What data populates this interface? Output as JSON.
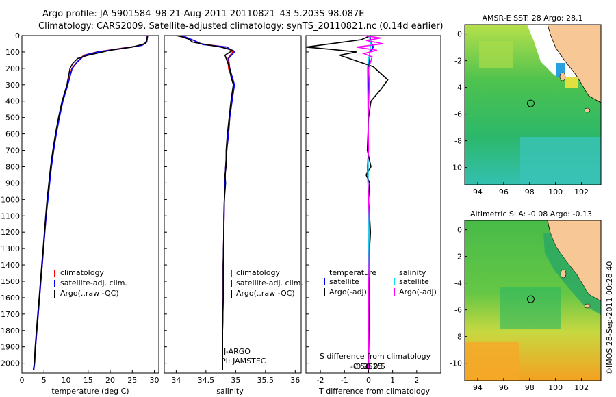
{
  "title_line1": "Argo profile: JA 5901584_98 21-Aug-2011 20110821_43 5.203S 98.087E",
  "title_line2": "Climatology: CARS2009. Satellite-adjusted climatology: synTS_20110821.nc (0.14d earlier)",
  "side_label": "©IMOS 28-Sep-2011 00:28:40",
  "colors": {
    "red": "#ff0000",
    "blue": "#0000ff",
    "black": "#000000",
    "cyan": "#00e5ee",
    "magenta": "#ff00ff",
    "land": "#f7c795"
  },
  "depth_ticks": [
    "0",
    "100",
    "200",
    "300",
    "400",
    "500",
    "600",
    "700",
    "800",
    "900",
    "1000",
    "1100",
    "1200",
    "1300",
    "1400",
    "1500",
    "1600",
    "1700",
    "1800",
    "1900",
    "2000"
  ],
  "chart_data": [
    {
      "type": "line",
      "title": "",
      "xlabel": "temperature (deg C)",
      "ylabel": "",
      "xlim": [
        0,
        31
      ],
      "ylim": [
        2060,
        0
      ],
      "xticks": [
        0,
        5,
        10,
        15,
        20,
        25,
        30
      ],
      "xtick_labels": [
        "0",
        "5",
        "10",
        "15",
        "20",
        "25",
        "30"
      ],
      "legend": [
        "climatology",
        "satellite-adj. clim.",
        "Argo(..raw -QC)"
      ],
      "series": [
        {
          "name": "climatology",
          "color": "#ff0000",
          "points": [
            [
              28.3,
              0
            ],
            [
              28.2,
              40
            ],
            [
              27.0,
              60
            ],
            [
              22,
              80
            ],
            [
              17,
              100
            ],
            [
              14,
              120
            ],
            [
              12.5,
              160
            ],
            [
              11.3,
              200
            ],
            [
              10.3,
              300
            ],
            [
              9.2,
              400
            ],
            [
              8.4,
              500
            ],
            [
              7.7,
              600
            ],
            [
              7.1,
              700
            ],
            [
              6.6,
              800
            ],
            [
              6.2,
              900
            ],
            [
              5.8,
              1000
            ],
            [
              5.5,
              1100
            ],
            [
              5.2,
              1200
            ],
            [
              4.9,
              1300
            ],
            [
              4.6,
              1400
            ],
            [
              4.3,
              1500
            ],
            [
              4.0,
              1600
            ],
            [
              3.7,
              1700
            ],
            [
              3.4,
              1800
            ],
            [
              3.1,
              1900
            ],
            [
              2.8,
              2000
            ],
            [
              2.6,
              2040
            ]
          ]
        },
        {
          "name": "satellite-adj. clim.",
          "color": "#0000ff",
          "points": [
            [
              28.4,
              0
            ],
            [
              28.3,
              40
            ],
            [
              27.2,
              60
            ],
            [
              22.3,
              80
            ],
            [
              17.2,
              100
            ],
            [
              14.2,
              120
            ],
            [
              12.6,
              160
            ],
            [
              11.4,
              200
            ],
            [
              10.4,
              300
            ],
            [
              9.3,
              400
            ],
            [
              8.5,
              500
            ],
            [
              7.8,
              600
            ],
            [
              7.2,
              700
            ],
            [
              6.7,
              800
            ],
            [
              6.3,
              900
            ],
            [
              5.9,
              1000
            ],
            [
              5.5,
              1100
            ],
            [
              5.2,
              1200
            ],
            [
              4.9,
              1300
            ],
            [
              4.6,
              1400
            ],
            [
              4.3,
              1500
            ],
            [
              4.0,
              1600
            ],
            [
              3.7,
              1700
            ],
            [
              3.4,
              1800
            ],
            [
              3.1,
              1900
            ],
            [
              2.9,
              2000
            ],
            [
              2.7,
              2040
            ]
          ]
        },
        {
          "name": "Argo(..raw -QC)",
          "color": "#000000",
          "points": [
            [
              28.5,
              0
            ],
            [
              28.3,
              30
            ],
            [
              27.8,
              50
            ],
            [
              25,
              70
            ],
            [
              20,
              90
            ],
            [
              15,
              120
            ],
            [
              12.6,
              140
            ],
            [
              11.5,
              170
            ],
            [
              10.9,
              200
            ],
            [
              10.2,
              300
            ],
            [
              9.1,
              400
            ],
            [
              8.3,
              500
            ],
            [
              7.6,
              600
            ],
            [
              7.0,
              700
            ],
            [
              6.5,
              800
            ],
            [
              6.1,
              900
            ],
            [
              5.7,
              1000
            ],
            [
              5.4,
              1100
            ],
            [
              5.1,
              1200
            ],
            [
              4.8,
              1300
            ],
            [
              4.5,
              1400
            ],
            [
              4.2,
              1500
            ],
            [
              3.9,
              1600
            ],
            [
              3.6,
              1700
            ],
            [
              3.3,
              1800
            ],
            [
              3.0,
              1900
            ],
            [
              2.8,
              2000
            ],
            [
              2.6,
              2040
            ]
          ]
        }
      ]
    },
    {
      "type": "line",
      "title": "",
      "xlabel": "salinity",
      "ylabel": "",
      "xlim": [
        33.8,
        36.1
      ],
      "ylim": [
        2060,
        0
      ],
      "xticks": [
        34,
        34.5,
        35,
        35.5,
        36
      ],
      "xtick_labels": [
        "34",
        "34.5",
        "35",
        "35.5",
        "36"
      ],
      "legend": [
        "climatology",
        "satellite-adj. clim.",
        "Argo(..raw -QC)"
      ],
      "annotations": [
        "J-ARGO",
        "PI: JAMSTEC"
      ],
      "series": [
        {
          "name": "climatology",
          "color": "#ff0000",
          "points": [
            [
              34.05,
              0
            ],
            [
              34.15,
              15
            ],
            [
              34.3,
              30
            ],
            [
              34.4,
              50
            ],
            [
              34.85,
              70
            ],
            [
              34.95,
              100
            ],
            [
              34.87,
              140
            ],
            [
              34.88,
              200
            ],
            [
              34.97,
              300
            ],
            [
              34.93,
              400
            ],
            [
              34.9,
              500
            ],
            [
              34.88,
              600
            ],
            [
              34.85,
              700
            ],
            [
              34.83,
              800
            ],
            [
              34.82,
              900
            ],
            [
              34.81,
              1000
            ],
            [
              34.8,
              1200
            ],
            [
              34.79,
              1400
            ],
            [
              34.79,
              1600
            ],
            [
              34.78,
              1800
            ],
            [
              34.78,
              2040
            ]
          ]
        },
        {
          "name": "satellite-adj. clim.",
          "color": "#0000ff",
          "points": [
            [
              34.1,
              0
            ],
            [
              34.2,
              15
            ],
            [
              34.3,
              30
            ],
            [
              34.45,
              55
            ],
            [
              34.85,
              70
            ],
            [
              34.98,
              100
            ],
            [
              34.88,
              140
            ],
            [
              34.9,
              200
            ],
            [
              34.98,
              300
            ],
            [
              34.94,
              400
            ],
            [
              34.9,
              500
            ],
            [
              34.88,
              600
            ],
            [
              34.85,
              700
            ],
            [
              34.83,
              800
            ],
            [
              34.82,
              900
            ],
            [
              34.81,
              1000
            ],
            [
              34.8,
              1200
            ],
            [
              34.79,
              1400
            ],
            [
              34.79,
              1600
            ],
            [
              34.78,
              1800
            ],
            [
              34.78,
              2040
            ]
          ]
        },
        {
          "name": "Argo(..raw -QC)",
          "color": "#000000",
          "points": [
            [
              34.0,
              0
            ],
            [
              34.12,
              10
            ],
            [
              34.2,
              20
            ],
            [
              34.28,
              40
            ],
            [
              34.5,
              55
            ],
            [
              34.75,
              70
            ],
            [
              34.95,
              90
            ],
            [
              34.82,
              120
            ],
            [
              34.9,
              200
            ],
            [
              34.92,
              250
            ],
            [
              34.96,
              300
            ],
            [
              34.92,
              400
            ],
            [
              34.89,
              500
            ],
            [
              34.86,
              600
            ],
            [
              34.84,
              700
            ],
            [
              34.84,
              800
            ],
            [
              34.82,
              850
            ],
            [
              34.83,
              900
            ],
            [
              34.81,
              1000
            ],
            [
              34.8,
              1100
            ],
            [
              34.8,
              1200
            ],
            [
              34.79,
              1400
            ],
            [
              34.79,
              1500
            ],
            [
              34.79,
              1600
            ],
            [
              34.78,
              1800
            ],
            [
              34.78,
              2040
            ]
          ]
        }
      ]
    },
    {
      "type": "line",
      "title": "",
      "xlabel": "T difference from climatology",
      "xlabel_top": "S difference from climatology",
      "ylabel": "",
      "xlim": [
        -2.6,
        3.0
      ],
      "ylim": [
        2060,
        0
      ],
      "xticks": [
        -2,
        -1,
        0,
        1,
        2
      ],
      "xtick_labels": [
        "-2",
        "-1",
        "0",
        "1",
        "2"
      ],
      "sticks": [
        -0.5,
        -0.25,
        0,
        0.25,
        0.5
      ],
      "stick_labels": [
        "-0.5",
        "-0.25",
        "0",
        "0.25",
        "0.5"
      ],
      "legend_headers": [
        "temperature",
        "salinity"
      ],
      "legend": [
        "satellite",
        "Argo(-adj)",
        "satellite",
        "Argo(-adj)"
      ],
      "series": [
        {
          "name": "temperature satellite",
          "color": "#0000ff",
          "points": [
            [
              0.05,
              0
            ],
            [
              0.1,
              40
            ],
            [
              0.2,
              70
            ],
            [
              0.05,
              100
            ],
            [
              0.0,
              200
            ],
            [
              -0.02,
              500
            ],
            [
              -0.02,
              1000
            ],
            [
              -0.01,
              1500
            ],
            [
              0.0,
              2040
            ]
          ]
        },
        {
          "name": "temperature Argo(-adj)",
          "color": "#000000",
          "points": [
            [
              0.1,
              0
            ],
            [
              -0.3,
              25
            ],
            [
              -2.6,
              70
            ],
            [
              -1.5,
              85
            ],
            [
              -0.5,
              100
            ],
            [
              -1.2,
              120
            ],
            [
              -0.6,
              150
            ],
            [
              0.2,
              190
            ],
            [
              0.8,
              270
            ],
            [
              0.5,
              330
            ],
            [
              0.1,
              400
            ],
            [
              0.0,
              500
            ],
            [
              -0.05,
              700
            ],
            [
              0.1,
              800
            ],
            [
              -0.1,
              850
            ],
            [
              0.05,
              900
            ],
            [
              0.0,
              1000
            ],
            [
              0.08,
              1200
            ],
            [
              0.0,
              1400
            ],
            [
              0.05,
              1600
            ],
            [
              0.02,
              1800
            ],
            [
              0.0,
              2040
            ]
          ]
        },
        {
          "name": "salinity satellite",
          "color": "#00e5ee",
          "points": [
            [
              0.0,
              0
            ],
            [
              0.1,
              40
            ],
            [
              0.05,
              100
            ],
            [
              -0.05,
              200
            ],
            [
              -0.02,
              500
            ],
            [
              -0.02,
              1000
            ],
            [
              -0.01,
              1500
            ],
            [
              0.0,
              2040
            ]
          ]
        },
        {
          "name": "salinity Argo(-adj)",
          "color": "#ff00ff",
          "points": [
            [
              -0.2,
              0
            ],
            [
              0.5,
              15
            ],
            [
              -0.1,
              30
            ],
            [
              0.6,
              50
            ],
            [
              -0.5,
              70
            ],
            [
              0.35,
              90
            ],
            [
              -0.2,
              110
            ],
            [
              0.15,
              130
            ],
            [
              0.0,
              200
            ],
            [
              0.03,
              300
            ],
            [
              -0.02,
              500
            ],
            [
              0.0,
              700
            ],
            [
              -0.05,
              800
            ],
            [
              0.0,
              1000
            ],
            [
              0.05,
              1200
            ],
            [
              0.02,
              1400
            ],
            [
              0.0,
              1600
            ],
            [
              0.0,
              2040
            ]
          ]
        }
      ]
    },
    {
      "type": "heatmap",
      "title": "AMSR-E SST: 28 Argo: 28.1",
      "xticks": [
        "94",
        "96",
        "98",
        "100",
        "102"
      ],
      "yticks": [
        "0",
        "-2",
        "-4",
        "-6",
        "-8",
        "-10"
      ],
      "xlim": [
        93,
        103.5
      ],
      "ylim": [
        -11.3,
        0.7
      ],
      "argo_position": [
        98.087,
        -5.203
      ]
    },
    {
      "type": "heatmap",
      "title": "Altimetric SLA: -0.08 Argo: -0.13",
      "xticks": [
        "94",
        "96",
        "98",
        "100",
        "102"
      ],
      "yticks": [
        "0",
        "-2",
        "-4",
        "-6",
        "-8",
        "-10"
      ],
      "xlim": [
        93,
        103.5
      ],
      "ylim": [
        -11.3,
        0.7
      ],
      "argo_position": [
        98.087,
        -5.203
      ]
    }
  ]
}
